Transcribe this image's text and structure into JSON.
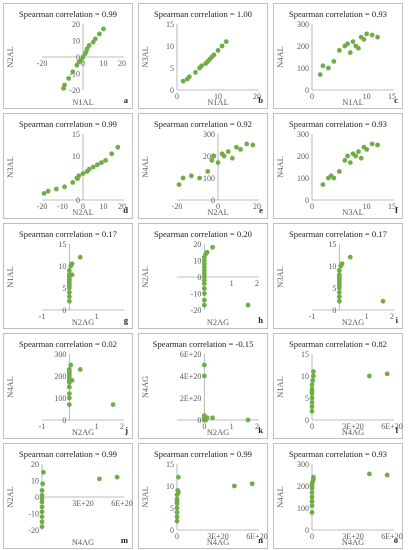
{
  "chart_data": [
    {
      "type": "scatter",
      "letter": "a",
      "annotation": "Spearman correlation = 0.99",
      "xlabel": "N1AL",
      "ylabel": "N2AL",
      "xlim": [
        -20,
        20
      ],
      "ylim": [
        -20,
        20
      ],
      "xticks": [
        "-20",
        "0",
        "10",
        "20"
      ],
      "xtick_values": [
        -20,
        0,
        10,
        20
      ],
      "yticks": [
        "-20",
        "-10",
        "0",
        "10",
        "20"
      ],
      "ytick_values": [
        -20,
        -10,
        0,
        10,
        20
      ],
      "x": [
        -9.5,
        -9,
        -7,
        -5,
        -3,
        -2,
        -1,
        0,
        1,
        1.5,
        2,
        3,
        5,
        6,
        8,
        10
      ],
      "y": [
        -19,
        -17,
        -13,
        -9,
        -5,
        -3,
        -2,
        0,
        2,
        3,
        5,
        7,
        9,
        11,
        14,
        17
      ]
    },
    {
      "type": "scatter",
      "letter": "b",
      "annotation": "Spearman correlation = 1.00",
      "xlabel": "N1AL",
      "ylabel": "N3AL",
      "xlim": [
        0,
        20
      ],
      "ylim": [
        0,
        15
      ],
      "xticks": [
        "0",
        "10",
        "20"
      ],
      "xtick_values": [
        0,
        10,
        20
      ],
      "yticks": [
        "0",
        "5",
        "10",
        "15"
      ],
      "ytick_values": [
        0,
        5,
        10,
        15
      ],
      "x": [
        1.5,
        2.5,
        3,
        4.5,
        5.5,
        6,
        7,
        7.5,
        8,
        8.5,
        9,
        10,
        11,
        12
      ],
      "y": [
        2,
        2.5,
        3,
        4,
        5,
        5.5,
        6,
        6.5,
        7,
        7.5,
        8,
        9,
        10,
        11
      ]
    },
    {
      "type": "scatter",
      "letter": "c",
      "annotation": "Spearman correlation = 0.93",
      "xlabel": "N1AL",
      "ylabel": "N4AL",
      "xlim": [
        0,
        15
      ],
      "ylim": [
        0,
        300
      ],
      "xticks": [
        "0",
        "10",
        "15"
      ],
      "xtick_values": [
        0,
        10,
        15
      ],
      "yticks": [
        "0",
        "100",
        "200",
        "300"
      ],
      "ytick_values": [
        0,
        100,
        200,
        300
      ],
      "x": [
        1.5,
        2,
        3,
        4,
        5,
        6,
        6.5,
        7,
        7.5,
        8,
        8.5,
        9,
        9.5,
        10,
        11,
        12
      ],
      "y": [
        70,
        110,
        100,
        130,
        180,
        200,
        210,
        170,
        220,
        200,
        190,
        240,
        230,
        255,
        250,
        240
      ]
    },
    {
      "type": "scatter",
      "letter": "d",
      "annotation": "Spearman correlation = 0.99",
      "xlabel": "N2AL",
      "ylabel": "N3AL",
      "xlim": [
        -20,
        20
      ],
      "ylim": [
        0,
        15
      ],
      "xticks": [
        "-20",
        "-10",
        "0",
        "10",
        "20"
      ],
      "xtick_values": [
        -20,
        -10,
        0,
        10,
        20
      ],
      "yticks": [
        "0",
        "5",
        "10",
        "15"
      ],
      "ytick_values": [
        0,
        5,
        10,
        15
      ],
      "x": [
        -19,
        -17,
        -13,
        -9,
        -5,
        -3,
        -2,
        0,
        2,
        3,
        5,
        7,
        9,
        11,
        14,
        17
      ],
      "y": [
        1.5,
        2,
        2.5,
        3,
        4,
        5,
        5.5,
        6,
        6.5,
        7,
        7.5,
        8,
        8.5,
        9,
        10.5,
        12
      ]
    },
    {
      "type": "scatter",
      "letter": "e",
      "annotation": "Spearman correlation = 0.92",
      "xlabel": "N2AL",
      "ylabel": "N4AL",
      "xlim": [
        -20,
        20
      ],
      "ylim": [
        0,
        300
      ],
      "xticks": [
        "-20",
        "0",
        "20"
      ],
      "xtick_values": [
        -20,
        0,
        20
      ],
      "yticks": [
        "0",
        "100",
        "200",
        "300"
      ],
      "ytick_values": [
        0,
        100,
        200,
        300
      ],
      "x": [
        -19,
        -17,
        -13,
        -9,
        -5,
        -3,
        -2,
        0,
        2,
        3,
        5,
        7,
        9,
        11,
        14,
        17
      ],
      "y": [
        70,
        100,
        110,
        100,
        130,
        180,
        200,
        170,
        210,
        200,
        220,
        190,
        240,
        230,
        255,
        250
      ]
    },
    {
      "type": "scatter",
      "letter": "f",
      "annotation": "Spearman correlation = 0.93",
      "xlabel": "N3AL",
      "ylabel": "N4AL",
      "xlim": [
        0,
        15
      ],
      "ylim": [
        0,
        300
      ],
      "xticks": [
        "0",
        "10",
        "15"
      ],
      "xtick_values": [
        0,
        10,
        15
      ],
      "yticks": [
        "0",
        "100",
        "200",
        "300"
      ],
      "ytick_values": [
        0,
        100,
        200,
        300
      ],
      "x": [
        2,
        3,
        3.5,
        4,
        5,
        6,
        6.5,
        7,
        7.5,
        8,
        8.5,
        9,
        9.5,
        10,
        11,
        12
      ],
      "y": [
        70,
        100,
        110,
        100,
        130,
        180,
        200,
        170,
        210,
        200,
        220,
        190,
        240,
        230,
        255,
        250
      ]
    },
    {
      "type": "scatter",
      "letter": "g",
      "annotation": "Spearman correlation = 0.17",
      "xlabel": "N2AG",
      "ylabel": "N1AL",
      "xlim": [
        -1,
        2
      ],
      "ylim": [
        0,
        15
      ],
      "xticks": [
        "-1",
        "1"
      ],
      "xtick_values": [
        -1,
        1
      ],
      "yticks": [
        "0",
        "5",
        "10",
        "15"
      ],
      "ytick_values": [
        0,
        5,
        10,
        15
      ],
      "x": [
        0,
        0,
        0,
        0,
        0,
        0,
        0,
        0,
        0,
        0,
        0,
        0.05,
        0.1,
        0.1,
        0.4
      ],
      "y": [
        2,
        3,
        4,
        5,
        5.5,
        6,
        6.5,
        7,
        7.5,
        8,
        9,
        10,
        10.5,
        8,
        12
      ]
    },
    {
      "type": "scatter",
      "letter": "h",
      "annotation": "Spearman correlation = 0.20",
      "xlabel": "N2AG",
      "ylabel": "N2AL",
      "xlim": [
        -1,
        2
      ],
      "ylim": [
        -20,
        20
      ],
      "xticks": [
        "1",
        "2"
      ],
      "xtick_values": [
        1,
        2
      ],
      "yticks": [
        "-20",
        "-10",
        "0",
        "10",
        "20"
      ],
      "ytick_values": [
        -20,
        -10,
        0,
        10,
        20
      ],
      "x": [
        0,
        0,
        0,
        0,
        0,
        0,
        0,
        0,
        0,
        0,
        0,
        0,
        0,
        0.05,
        0.1,
        0.3,
        1.6
      ],
      "y": [
        -17,
        -14,
        -10,
        -7,
        -4,
        -2,
        0,
        2,
        4,
        6,
        8,
        10,
        12,
        14,
        15,
        18,
        -17
      ]
    },
    {
      "type": "scatter",
      "letter": "i",
      "annotation": "Spearman correlation = 0.17",
      "xlabel": "N2AG",
      "ylabel": "N3AL",
      "xlim": [
        -1,
        2
      ],
      "ylim": [
        0,
        15
      ],
      "xticks": [
        "-1",
        "1",
        "2"
      ],
      "xtick_values": [
        -1,
        1,
        2
      ],
      "yticks": [
        "0",
        "5",
        "10",
        "15"
      ],
      "ytick_values": [
        0,
        5,
        10,
        15
      ],
      "x": [
        0,
        0,
        0,
        0,
        0,
        0,
        0,
        0,
        0,
        0,
        0,
        0.05,
        0.1,
        0.4,
        1.6
      ],
      "y": [
        2,
        3,
        4,
        5,
        5.5,
        6,
        6.5,
        7,
        7.5,
        8,
        9,
        10,
        10.5,
        12,
        2
      ]
    },
    {
      "type": "scatter",
      "letter": "j",
      "annotation": "Spearman correlation = 0.02",
      "xlabel": "N2AG",
      "ylabel": "N4AL",
      "xlim": [
        -1,
        2
      ],
      "ylim": [
        0,
        300
      ],
      "xticks": [
        "-1",
        "1",
        "2"
      ],
      "xtick_values": [
        -1,
        1,
        2
      ],
      "yticks": [
        "0",
        "100",
        "200",
        "300"
      ],
      "ytick_values": [
        0,
        100,
        200,
        300
      ],
      "x": [
        0,
        0,
        0,
        0,
        0,
        0,
        0,
        0,
        0,
        0,
        0,
        0.05,
        0.1,
        0.4,
        1.6
      ],
      "y": [
        70,
        100,
        120,
        150,
        170,
        180,
        190,
        200,
        210,
        220,
        230,
        250,
        180,
        230,
        70
      ]
    },
    {
      "type": "scatter",
      "letter": "k",
      "annotation": "Spearman correlation = -0.15",
      "xlabel": "N2AG",
      "ylabel": "N4AG",
      "xlim": [
        -1,
        2
      ],
      "ylim": [
        0,
        6e+20
      ],
      "xticks": [
        "0",
        "1",
        "2"
      ],
      "xtick_values": [
        0,
        1,
        2
      ],
      "yticks": [
        "0",
        "2E+20",
        "4E+20",
        "6E+20"
      ],
      "ytick_values": [
        0,
        2e+20,
        4e+20,
        6e+20
      ],
      "x": [
        0,
        0,
        0,
        0,
        0,
        0,
        0,
        0,
        0,
        0.05,
        0.1,
        0.3,
        1.6
      ],
      "y": [
        0,
        0,
        0,
        0,
        0,
        2e+19,
        4e+19,
        5e+20,
        4e+20,
        0,
        2e+19,
        2e+19,
        0
      ]
    },
    {
      "type": "scatter",
      "letter": "l",
      "annotation": "Spearman correlation = 0.82",
      "xlabel": "N4AG",
      "ylabel": "N1AL",
      "xlim": [
        0,
        6e+20
      ],
      "ylim": [
        0,
        15
      ],
      "xticks": [
        "0",
        "3E+20",
        "6E+20"
      ],
      "xtick_values": [
        0,
        3e+20,
        6e+20
      ],
      "yticks": [
        "0",
        "5",
        "10",
        "15"
      ],
      "ytick_values": [
        0,
        5,
        10,
        15
      ],
      "x": [
        0,
        0,
        0,
        0,
        0,
        0,
        0,
        0,
        5e+18,
        1e+19,
        1e+19,
        4.2e+20,
        5.5e+20
      ],
      "y": [
        2,
        3,
        4,
        5,
        6,
        6.5,
        7,
        8,
        9,
        10,
        11,
        10,
        10.5
      ]
    },
    {
      "type": "scatter",
      "letter": "m",
      "annotation": "Spearman correlation = 0.99",
      "xlabel": "N4AG",
      "ylabel": "N2AL",
      "xlim": [
        0,
        6e+20
      ],
      "ylim": [
        -20,
        20
      ],
      "xticks": [
        "3E+20",
        "6E+20"
      ],
      "xtick_values": [
        3e+20,
        6e+20
      ],
      "yticks": [
        "-20",
        "-10",
        "0",
        "10",
        "20"
      ],
      "ytick_values": [
        -20,
        -10,
        0,
        10,
        20
      ],
      "x": [
        0,
        0,
        0,
        0,
        0,
        0,
        0,
        0,
        0,
        5e+18,
        1e+19,
        4.2e+20,
        5.5e+20
      ],
      "y": [
        -18,
        -15,
        -12,
        -9,
        -6,
        -3,
        -1,
        1,
        4,
        8,
        15,
        11,
        12
      ]
    },
    {
      "type": "scatter",
      "letter": "n",
      "annotation": "Spearman correlation = 0.99",
      "xlabel": "N4AG",
      "ylabel": "N3AL",
      "xlim": [
        0,
        6e+20
      ],
      "ylim": [
        0,
        15
      ],
      "xticks": [
        "0",
        "3E+20",
        "6E+20"
      ],
      "xtick_values": [
        0,
        3e+20,
        6e+20
      ],
      "yticks": [
        "0",
        "5",
        "10",
        "15"
      ],
      "ytick_values": [
        0,
        5,
        10,
        15
      ],
      "x": [
        0,
        0,
        0,
        0,
        0,
        0,
        0,
        0,
        5e+18,
        1e+19,
        1e+19,
        4.2e+20,
        5.5e+20
      ],
      "y": [
        2,
        3,
        4,
        5,
        6,
        6.5,
        7,
        8,
        9,
        8.5,
        12,
        10,
        10.5
      ]
    },
    {
      "type": "scatter",
      "letter": "o",
      "annotation": "Spearman correlation = 0.93",
      "xlabel": "N4AG",
      "ylabel": "N4AL",
      "xlim": [
        0,
        6e+20
      ],
      "ylim": [
        0,
        300
      ],
      "xticks": [
        "0",
        "3E+20",
        "6E+20"
      ],
      "xtick_values": [
        0,
        3e+20,
        6e+20
      ],
      "yticks": [
        "0",
        "100",
        "200",
        "300"
      ],
      "ytick_values": [
        0,
        100,
        200,
        300
      ],
      "x": [
        0,
        0,
        0,
        0,
        0,
        0,
        0,
        0,
        5e+18,
        1e+19,
        1e+19,
        4.2e+20,
        5.5e+20
      ],
      "y": [
        80,
        110,
        130,
        150,
        170,
        190,
        200,
        210,
        220,
        230,
        240,
        255,
        250
      ]
    }
  ],
  "colors": {
    "marker": "#70ad47",
    "axis": "#a6a6a6",
    "text": "#595959",
    "border": "#bfbfbf"
  }
}
